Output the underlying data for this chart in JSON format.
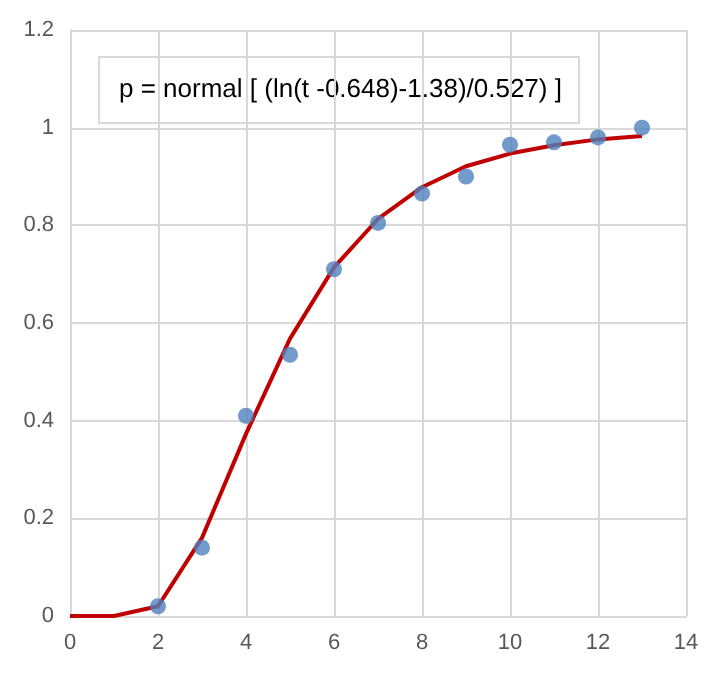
{
  "chart_data": {
    "type": "scatter",
    "annotations": [
      "p = normal [ (ln(t -0.648)-1.38)/0.527) ]"
    ],
    "xlim": [
      0,
      14
    ],
    "xticks": [
      0,
      2,
      4,
      6,
      8,
      10,
      12,
      14
    ],
    "ylim": [
      0,
      1.2
    ],
    "yticks": [
      0,
      0.2,
      0.4,
      0.6,
      0.8,
      1,
      1.2
    ],
    "grid": true,
    "series": [
      {
        "marker": "circle",
        "color": "#4f81bd",
        "x": [
          2,
          3,
          4,
          5,
          6,
          7,
          8,
          9,
          10,
          11,
          12,
          13
        ],
        "values": [
          0.02,
          0.14,
          0.41,
          0.535,
          0.71,
          0.805,
          0.865,
          0.9,
          0.965,
          0.97,
          0.98,
          1.0
        ]
      },
      {
        "type": "line",
        "marker": "none",
        "color": "#c00000",
        "x": [
          0,
          1,
          2,
          3,
          4,
          5,
          6,
          7,
          8,
          9,
          10,
          11,
          12,
          13
        ],
        "values": [
          0,
          0,
          0.02,
          0.16,
          0.373,
          0.568,
          0.714,
          0.813,
          0.878,
          0.921,
          0.947,
          0.964,
          0.976,
          0.983
        ]
      }
    ]
  }
}
